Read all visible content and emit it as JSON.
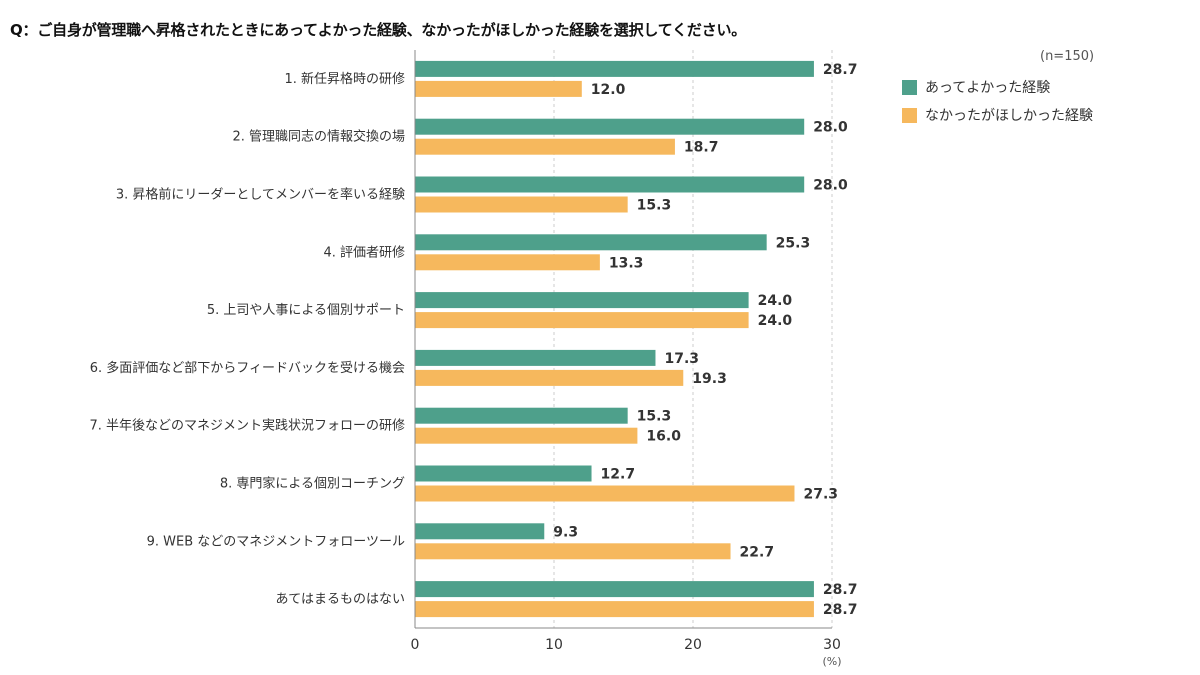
{
  "page": {
    "title": "Q：ご自身が管理職へ昇格されたときにあってよかった経験、なかったがほしかった経験を選択してください。",
    "note": "(n=150)"
  },
  "legend": [
    {
      "label": "あってよかった経験",
      "color": "#4ea08b"
    },
    {
      "label": "なかったがほしかった経験",
      "color": "#f6b85d"
    }
  ],
  "chart_data": {
    "type": "bar",
    "orientation": "horizontal",
    "categories": [
      "1. 新任昇格時の研修",
      "2. 管理職同志の情報交換の場",
      "3. 昇格前にリーダーとしてメンバーを率いる経験",
      "4. 評価者研修",
      "5. 上司や人事による個別サポート",
      "6. 多面評価など部下からフィードバックを受ける機会",
      "7. 半年後などのマネジメント実践状況フォローの研修",
      "8. 専門家による個別コーチング",
      "9. WEB などのマネジメントフォローツール",
      "あてはまるものはない"
    ],
    "series": [
      {
        "name": "あってよかった経験",
        "color": "#4ea08b",
        "values": [
          28.7,
          28.0,
          28.0,
          25.3,
          24.0,
          17.3,
          15.3,
          12.7,
          9.3,
          28.7
        ]
      },
      {
        "name": "なかったがほしかった経験",
        "color": "#f6b85d",
        "values": [
          12.0,
          18.7,
          15.3,
          13.3,
          24.0,
          19.3,
          16.0,
          27.3,
          22.7,
          28.7
        ]
      }
    ],
    "xlim": [
      0,
      30
    ],
    "xticks": [
      0,
      10,
      20,
      30
    ],
    "unit": "(%)",
    "grid": "vertical dashed",
    "legend_position": "right"
  }
}
